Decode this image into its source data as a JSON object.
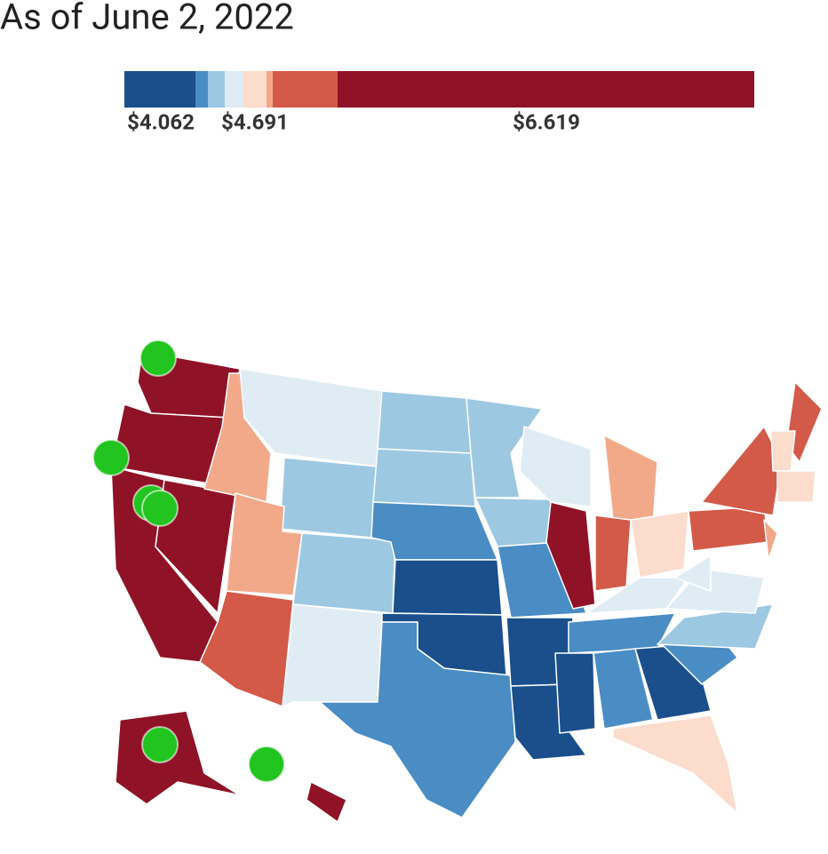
{
  "header": {
    "title": "As of June 2, 2022"
  },
  "legend": {
    "labels": [
      "$4.062",
      "$4.691",
      "$6.619"
    ]
  }
}
